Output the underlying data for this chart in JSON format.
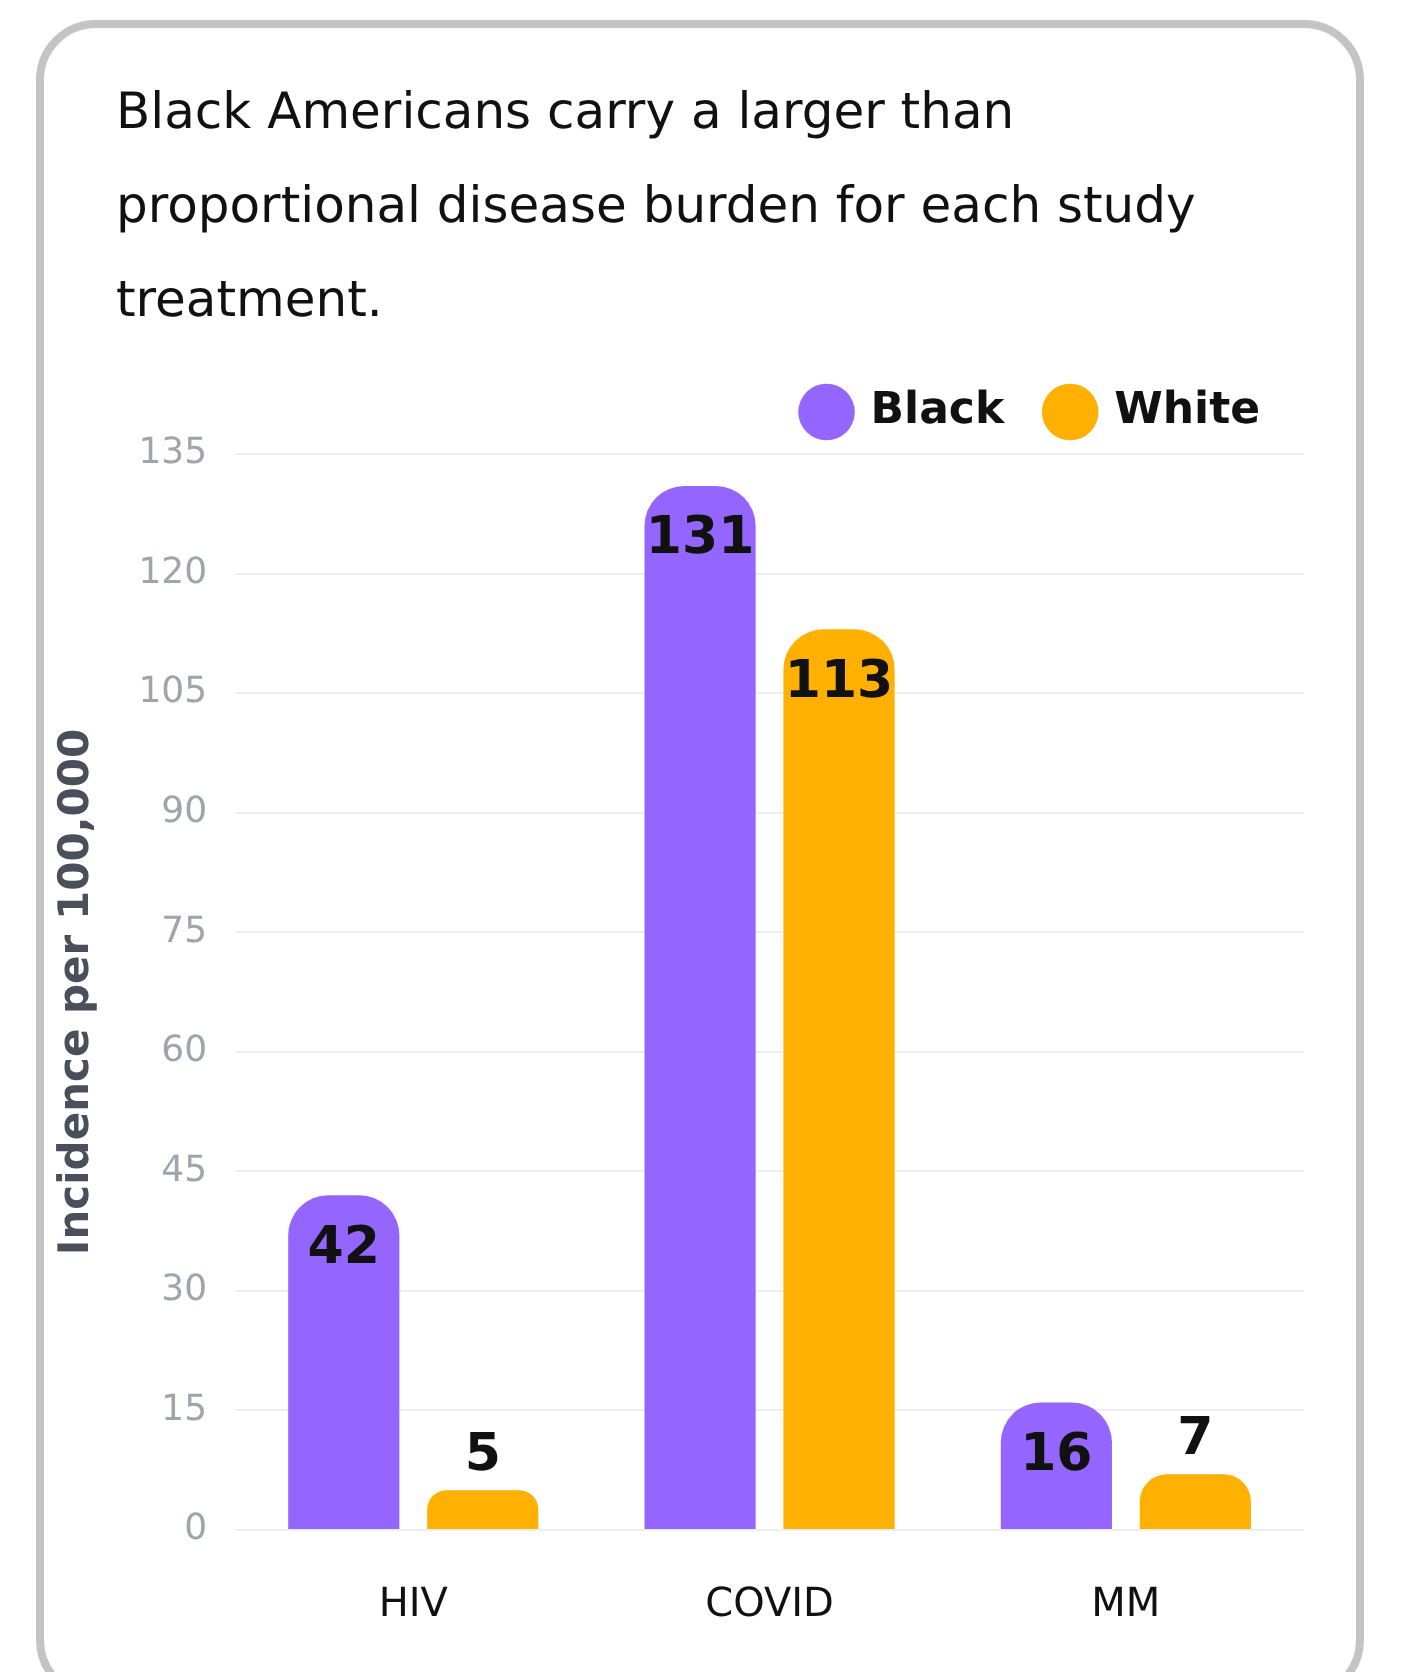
{
  "chart_data": {
    "type": "bar",
    "title": "Black Americans carry a larger than proportional disease burden for each study treatment.",
    "ylabel": "Incidence per 100,000",
    "categories": [
      "HIV",
      "COVID",
      "MM"
    ],
    "series": [
      {
        "name": "Black",
        "color": "#9466ff",
        "values": [
          42,
          131,
          16
        ]
      },
      {
        "name": "White",
        "color": "#ffb000",
        "values": [
          5,
          113,
          7
        ]
      }
    ],
    "ylim": [
      0,
      135
    ],
    "yticks": [
      0,
      15,
      30,
      45,
      60,
      75,
      90,
      105,
      120,
      135
    ],
    "grid": "y",
    "legend": "top right",
    "data_labels": true
  }
}
